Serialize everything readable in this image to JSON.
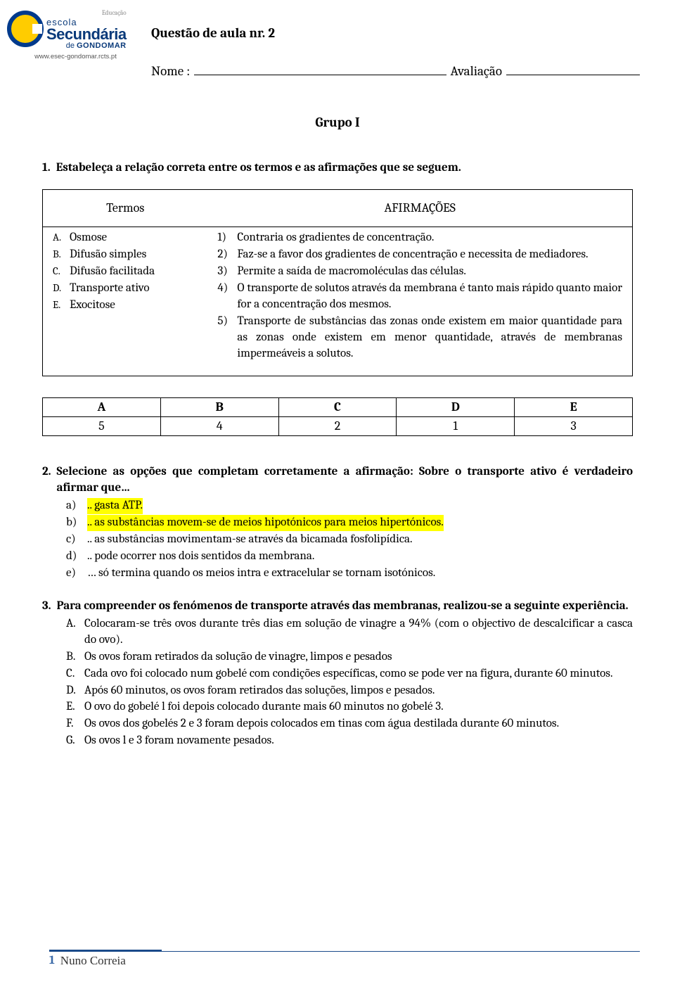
{
  "logo": {
    "edu": "Educação",
    "l1": "escola",
    "l2": "Secundária",
    "l3_pre": "de ",
    "l3_strong": "GONDOMAR",
    "url": "www.esec-gondomar.rcts.pt"
  },
  "header": {
    "title": "Questão de aula nr. 2",
    "name_label": "Nome :",
    "aval_label": "Avaliação"
  },
  "group_title": "Grupo I",
  "q1": {
    "num": "1.",
    "text": "Estabeleça a relação correta entre os termos e as afirmações que se seguem.",
    "col1": "Termos",
    "col2": "AFIRMAÇÕES",
    "terms": [
      {
        "l": "A.",
        "t": "Osmose"
      },
      {
        "l": "B.",
        "t": "Difusão simples"
      },
      {
        "l": "C.",
        "t": "Difusão facilitada"
      },
      {
        "l": "D.",
        "t": "Transporte ativo"
      },
      {
        "l": "E.",
        "t": "Exocitose"
      }
    ],
    "affs": [
      {
        "l": "1)",
        "t": "Contraria os gradientes de concentração."
      },
      {
        "l": "2)",
        "t": "Faz-se a favor dos gradientes de concentração e necessita de mediadores."
      },
      {
        "l": "3)",
        "t": "Permite a saída de macromoléculas das células."
      },
      {
        "l": "4)",
        "t": "O transporte de solutos através da membrana é tanto mais rápido quanto maior for a concentração dos mesmos."
      },
      {
        "l": "5)",
        "t": "Transporte de substâncias das zonas onde existem em maior quantidade para as zonas onde existem em menor quantidade, através de membranas impermeáveis a solutos."
      }
    ],
    "answers": {
      "headers": [
        "A",
        "B",
        "C",
        "D",
        "E"
      ],
      "values": [
        "5",
        "4",
        "2",
        "1",
        "3"
      ]
    }
  },
  "q2": {
    "num": "2.",
    "text": "Selecione as opções que completam corretamente a afirmação: Sobre o transporte ativo é verdadeiro afirmar que…",
    "opts": [
      {
        "l": "a)",
        "t": ".. gasta ATP.",
        "hl": true
      },
      {
        "l": "b)",
        "t": ".. as substâncias movem-se de meios hipotónicos para meios hipertónicos.",
        "hl": true
      },
      {
        "l": "c)",
        "t": ".. as substâncias movimentam-se através da bicamada fosfolipídica.",
        "hl": false
      },
      {
        "l": "d)",
        "t": ".. pode ocorrer nos dois sentidos da membrana.",
        "hl": false
      },
      {
        "l": "e)",
        "t": "… só termina quando os meios intra e extracelular se tornam isotónicos.",
        "hl": false
      }
    ]
  },
  "q3": {
    "num": "3.",
    "text": "Para compreender os fenómenos de transporte através das membranas, realizou-se a seguinte experiência.",
    "steps": [
      {
        "l": "A.",
        "t": "Colocaram-se três ovos durante três dias em solução de vinagre a 94% (com o objectivo de descalcificar a casca do ovo)."
      },
      {
        "l": "B.",
        "t": "Os ovos foram retirados da solução de vinagre, limpos e pesados"
      },
      {
        "l": "C.",
        "t": "Cada ovo foi colocado num gobelé com condições específicas, como se pode ver na figura, durante 60 minutos."
      },
      {
        "l": "D.",
        "t": "Após 60 minutos, os ovos foram retirados das soluções, limpos e pesados."
      },
      {
        "l": "E.",
        "t": "O ovo do gobelé l foi depois colocado durante mais 60 minutos no gobelé 3."
      },
      {
        "l": "F.",
        "t": "Os ovos dos gobelés 2 e 3 foram depois colocados em tinas com água destilada durante 60 minutos."
      },
      {
        "l": "G.",
        "t": "Os ovos l e 3 foram novamente pesados."
      }
    ]
  },
  "footer": {
    "page": "1",
    "author": "Nuno Correia"
  }
}
